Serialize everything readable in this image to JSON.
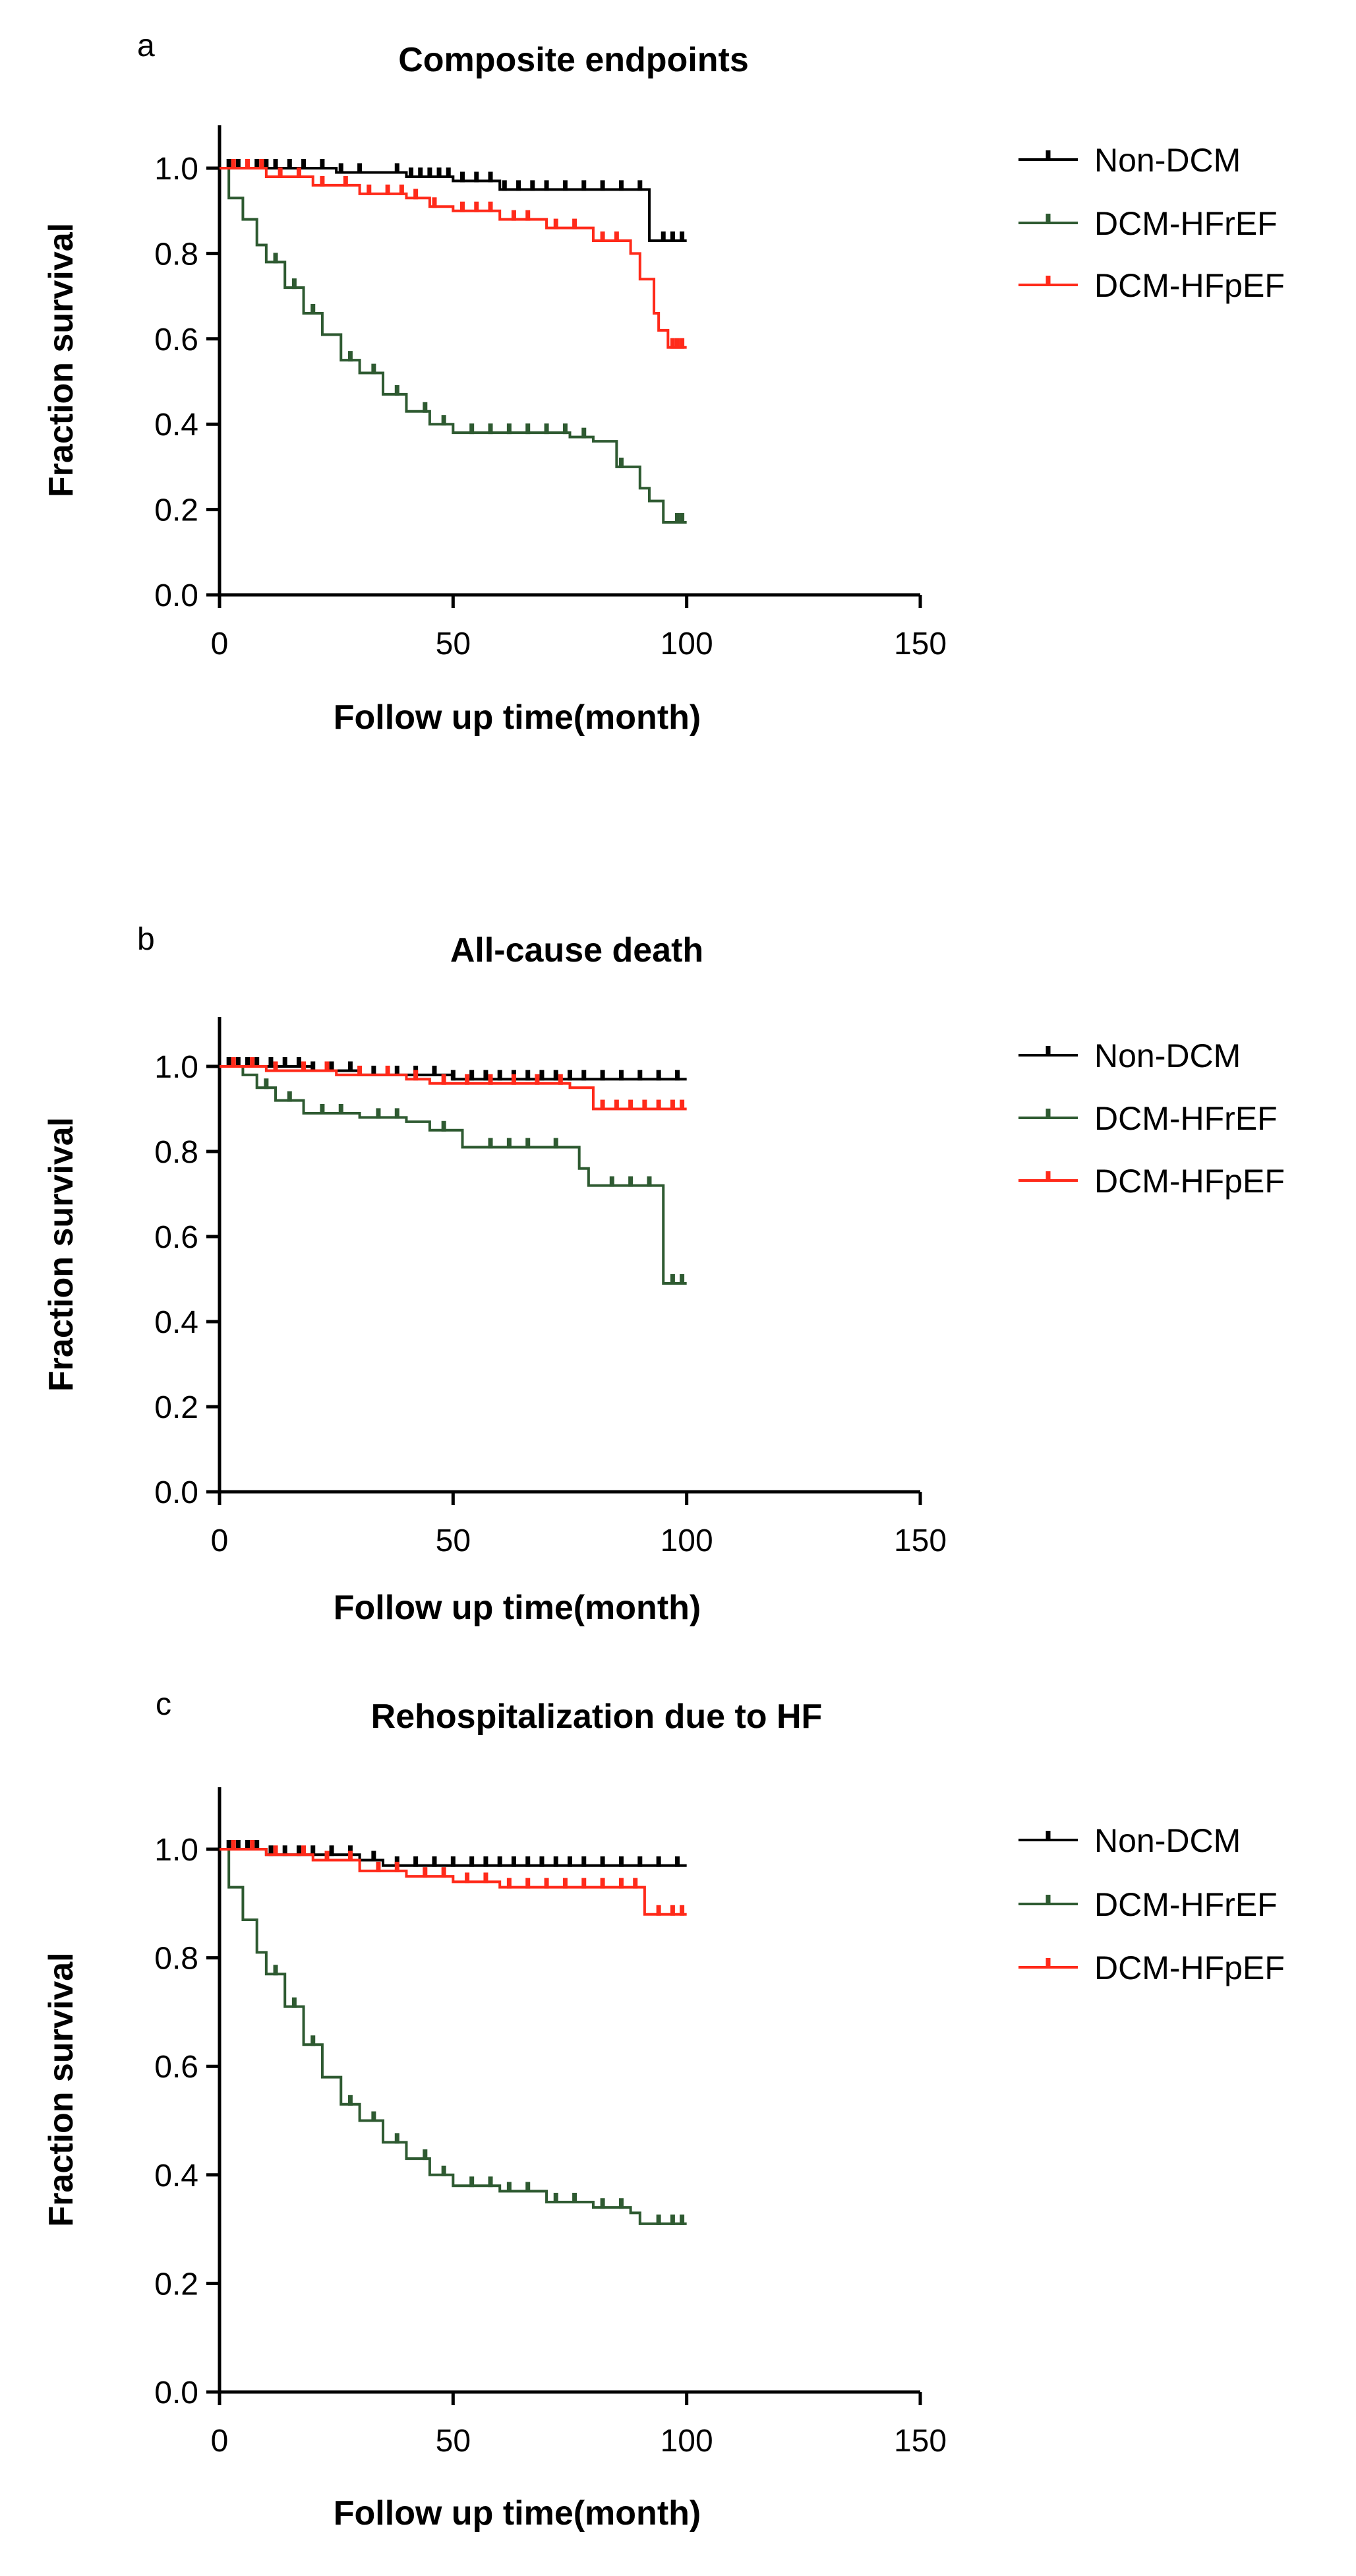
{
  "chart_data": [
    {
      "type": "line",
      "panel": "a",
      "title": "Composite endpoints",
      "xlabel": "Follow up time(month)",
      "ylabel": "Fraction survival",
      "xlim": [
        0,
        150
      ],
      "ylim": [
        0,
        1.1
      ],
      "xticks": [
        0,
        50,
        100,
        150
      ],
      "yticks": [
        0.0,
        0.2,
        0.4,
        0.6,
        0.8,
        1.0
      ],
      "xtick_labels": [
        "0",
        "50",
        "100",
        "150"
      ],
      "ytick_labels": [
        "0.0",
        "0.2",
        "0.4",
        "0.6",
        "0.8",
        "1.0"
      ],
      "series": [
        {
          "name": "Non-DCM",
          "color": "#000000",
          "x": [
            0,
            5,
            25,
            40,
            50,
            60,
            91,
            92,
            100
          ],
          "y": [
            1.0,
            1.0,
            0.99,
            0.98,
            0.97,
            0.95,
            0.95,
            0.83,
            0.83
          ],
          "censor_x": [
            2,
            4,
            6,
            8,
            10,
            12,
            15,
            18,
            22,
            26,
            30,
            38,
            41,
            43,
            45,
            47,
            49,
            52,
            55,
            58,
            61,
            64,
            67,
            70,
            74,
            78,
            82,
            86,
            90,
            95,
            97,
            99
          ]
        },
        {
          "name": "DCM-HFrEF",
          "color": "#2e5a31",
          "x": [
            0,
            2,
            5,
            8,
            10,
            14,
            18,
            22,
            26,
            30,
            35,
            40,
            45,
            50,
            60,
            75,
            80,
            85,
            90,
            92,
            95,
            97,
            100
          ],
          "y": [
            1.0,
            0.93,
            0.88,
            0.82,
            0.78,
            0.72,
            0.66,
            0.61,
            0.55,
            0.52,
            0.47,
            0.43,
            0.4,
            0.38,
            0.38,
            0.37,
            0.36,
            0.3,
            0.25,
            0.22,
            0.17,
            0.17,
            0.17
          ],
          "censor_x": [
            12,
            16,
            20,
            28,
            33,
            38,
            44,
            48,
            54,
            58,
            62,
            66,
            70,
            74,
            78,
            86,
            98,
            99
          ]
        },
        {
          "name": "DCM-HFpEF",
          "color": "#ff2a1a",
          "x": [
            0,
            10,
            20,
            30,
            40,
            45,
            50,
            60,
            70,
            80,
            88,
            90,
            93,
            94,
            96,
            100
          ],
          "y": [
            1.0,
            0.98,
            0.96,
            0.94,
            0.93,
            0.91,
            0.9,
            0.88,
            0.86,
            0.83,
            0.8,
            0.74,
            0.66,
            0.62,
            0.58,
            0.58
          ],
          "censor_x": [
            3,
            6,
            9,
            13,
            17,
            22,
            27,
            32,
            36,
            39,
            42,
            46,
            52,
            55,
            58,
            63,
            66,
            72,
            76,
            82,
            85,
            97,
            98,
            99
          ]
        }
      ]
    },
    {
      "type": "line",
      "panel": "b",
      "title": "All-cause death",
      "xlabel": "Follow up time(month)",
      "ylabel": "Fraction survival",
      "xlim": [
        0,
        150
      ],
      "ylim": [
        0,
        1.1
      ],
      "xticks": [
        0,
        50,
        100,
        150
      ],
      "yticks": [
        0.0,
        0.2,
        0.4,
        0.6,
        0.8,
        1.0
      ],
      "xtick_labels": [
        "0",
        "50",
        "100",
        "150"
      ],
      "ytick_labels": [
        "0.0",
        "0.2",
        "0.4",
        "0.6",
        "0.8",
        "1.0"
      ],
      "series": [
        {
          "name": "Non-DCM",
          "color": "#000000",
          "x": [
            0,
            10,
            20,
            30,
            45,
            50,
            60,
            100
          ],
          "y": [
            1.0,
            1.0,
            0.99,
            0.98,
            0.98,
            0.97,
            0.97,
            0.97
          ],
          "censor_x": [
            2,
            4,
            6,
            8,
            11,
            14,
            17,
            20,
            24,
            28,
            33,
            38,
            42,
            46,
            50,
            54,
            57,
            60,
            63,
            66,
            69,
            72,
            75,
            78,
            82,
            86,
            90,
            94,
            98
          ]
        },
        {
          "name": "DCM-HFrEF",
          "color": "#2e5a31",
          "x": [
            0,
            5,
            8,
            12,
            18,
            30,
            40,
            45,
            52,
            70,
            77,
            79,
            94,
            95,
            100
          ],
          "y": [
            1.0,
            0.98,
            0.95,
            0.92,
            0.89,
            0.88,
            0.87,
            0.85,
            0.81,
            0.81,
            0.76,
            0.72,
            0.72,
            0.49,
            0.49
          ],
          "censor_x": [
            10,
            15,
            22,
            26,
            34,
            38,
            48,
            58,
            62,
            66,
            72,
            84,
            88,
            92,
            97,
            99
          ]
        },
        {
          "name": "DCM-HFpEF",
          "color": "#ff2a1a",
          "x": [
            0,
            10,
            25,
            40,
            45,
            60,
            75,
            80,
            100
          ],
          "y": [
            1.0,
            0.99,
            0.98,
            0.97,
            0.96,
            0.96,
            0.95,
            0.9,
            0.9
          ],
          "censor_x": [
            3,
            7,
            12,
            18,
            23,
            30,
            36,
            42,
            48,
            53,
            58,
            63,
            68,
            73,
            82,
            85,
            88,
            91,
            94,
            97,
            99
          ]
        }
      ]
    },
    {
      "type": "line",
      "panel": "c",
      "title": "Rehospitalization due to HF",
      "xlabel": "Follow up time(month)",
      "ylabel": "Fraction survival",
      "xlim": [
        0,
        150
      ],
      "ylim": [
        0,
        1.1
      ],
      "xticks": [
        0,
        50,
        100,
        150
      ],
      "yticks": [
        0.0,
        0.2,
        0.4,
        0.6,
        0.8,
        1.0
      ],
      "xtick_labels": [
        "0",
        "50",
        "100",
        "150"
      ],
      "ytick_labels": [
        "0.0",
        "0.2",
        "0.4",
        "0.6",
        "0.8",
        "1.0"
      ],
      "series": [
        {
          "name": "Non-DCM",
          "color": "#000000",
          "x": [
            0,
            10,
            20,
            30,
            35,
            40,
            100
          ],
          "y": [
            1.0,
            0.99,
            0.99,
            0.98,
            0.97,
            0.97,
            0.97
          ],
          "censor_x": [
            2,
            4,
            6,
            8,
            11,
            14,
            17,
            20,
            24,
            28,
            33,
            38,
            42,
            46,
            50,
            54,
            57,
            60,
            63,
            66,
            69,
            72,
            75,
            78,
            82,
            86,
            90,
            94,
            98
          ]
        },
        {
          "name": "DCM-HFrEF",
          "color": "#2e5a31",
          "x": [
            0,
            2,
            5,
            8,
            10,
            14,
            18,
            22,
            26,
            30,
            35,
            40,
            45,
            50,
            60,
            70,
            80,
            88,
            90,
            100
          ],
          "y": [
            1.0,
            0.93,
            0.87,
            0.81,
            0.77,
            0.71,
            0.64,
            0.58,
            0.53,
            0.5,
            0.46,
            0.43,
            0.4,
            0.38,
            0.37,
            0.35,
            0.34,
            0.33,
            0.31,
            0.31
          ],
          "censor_x": [
            12,
            16,
            20,
            28,
            33,
            38,
            44,
            48,
            54,
            58,
            62,
            66,
            72,
            76,
            82,
            86,
            94,
            97,
            99
          ]
        },
        {
          "name": "DCM-HFpEF",
          "color": "#ff2a1a",
          "x": [
            0,
            10,
            20,
            30,
            40,
            50,
            60,
            90,
            91,
            100
          ],
          "y": [
            1.0,
            0.99,
            0.98,
            0.96,
            0.95,
            0.94,
            0.93,
            0.93,
            0.88,
            0.88
          ],
          "censor_x": [
            3,
            7,
            12,
            18,
            23,
            28,
            34,
            38,
            44,
            48,
            53,
            57,
            62,
            66,
            70,
            74,
            78,
            82,
            86,
            89,
            94,
            97,
            99
          ]
        }
      ]
    }
  ]
}
